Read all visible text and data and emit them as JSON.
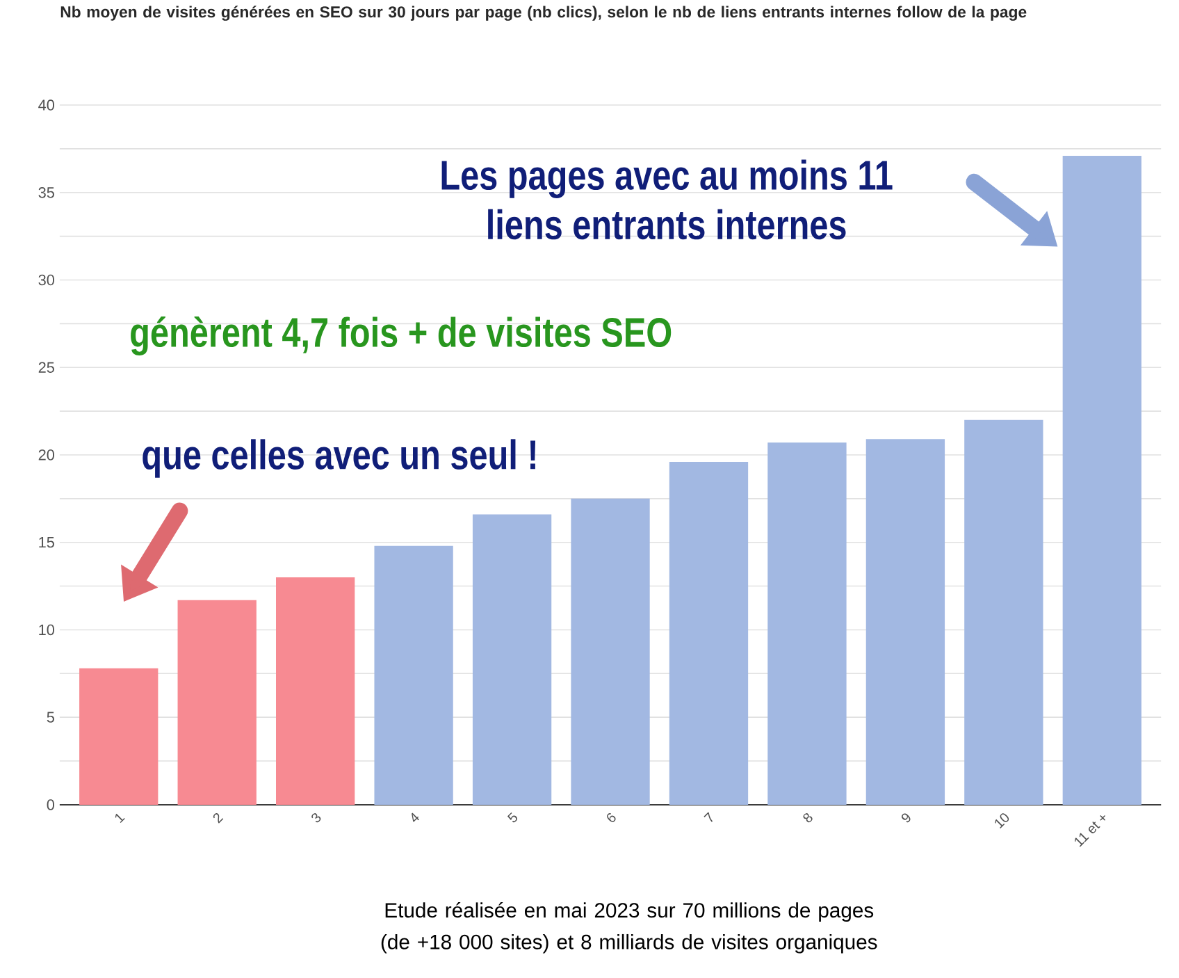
{
  "chart_data": {
    "type": "bar",
    "title": "Nb moyen de visites générées en SEO sur 30 jours par page (nb clics), selon le nb de liens entrants internes follow de la page",
    "categories": [
      "1",
      "2",
      "3",
      "4",
      "5",
      "6",
      "7",
      "8",
      "9",
      "10",
      "11 et +"
    ],
    "values": [
      7.8,
      11.7,
      13.0,
      14.8,
      16.6,
      17.5,
      19.6,
      20.7,
      20.9,
      22.0,
      37.1
    ],
    "colors": [
      "#f78a92",
      "#f78a92",
      "#f78a92",
      "#a2b8e2",
      "#a2b8e2",
      "#a2b8e2",
      "#a2b8e2",
      "#a2b8e2",
      "#a2b8e2",
      "#a2b8e2",
      "#a2b8e2"
    ],
    "ylim": [
      0,
      40
    ],
    "yticks": [
      0,
      {
        "value": 2.5,
        "label": null
      },
      5,
      {
        "value": 7.5,
        "label": null
      },
      10,
      {
        "value": 12.5,
        "label": null
      },
      15,
      {
        "value": 17.5,
        "label": null
      },
      20,
      {
        "value": 22.5,
        "label": null
      },
      25,
      {
        "value": 27.5,
        "label": null
      },
      30,
      {
        "value": 32.5,
        "label": null
      },
      35,
      {
        "value": 37.5,
        "label": null
      },
      40
    ],
    "grid": "y",
    "annotations": [
      "Les pages avec au moins 11 liens entrants internes",
      "génèrent 4,7  fois + de visites SEO",
      "que celles avec un seul !",
      "Etude réalisée en mai 2023 sur 70 millions de pages (de +18 000 sites) et 8 milliards de visites organiques"
    ]
  }
}
